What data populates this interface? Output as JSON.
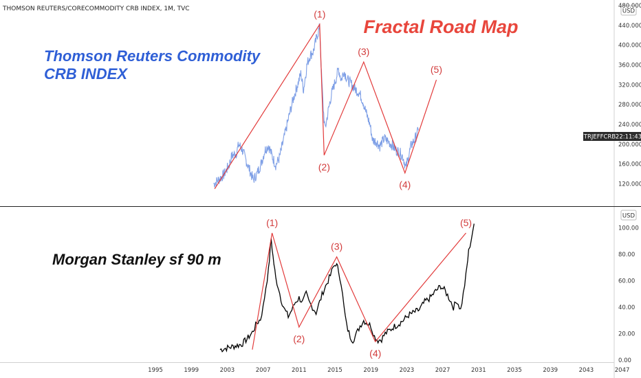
{
  "header": {
    "symbol_title": "THOMSON REUTERS/CORECOMMODITY CRB INDEX, 1M, TVC"
  },
  "colors": {
    "crb_series": "#7e9fe6",
    "ms_series": "#000000",
    "wave_lines": "#e23a3a",
    "wave_labels": "#d23b3b",
    "title_red": "#e8463c",
    "title_blue": "#2f5fd6",
    "price_tag_bg": "#2b2b2b",
    "divider": "#222222"
  },
  "annotations": {
    "fractal_title": "Fractal Road Map",
    "crb_title_line1": "Thomson Reuters Commodity",
    "crb_title_line2": "CRB INDEX",
    "ms_title": "Morgan Stanley sf 90 m"
  },
  "price_tag": {
    "symbol": "TRJEFFCRB",
    "time": "22:11:43"
  },
  "chart_data": [
    {
      "type": "line",
      "pane": "top",
      "currency": "USD",
      "ylim": [
        100,
        480
      ],
      "y_ticks": [
        "120.0000",
        "160.0000",
        "200.0000",
        "240.0000",
        "280.0000",
        "320.0000",
        "360.0000",
        "400.0000",
        "440.0000",
        "480.0000"
      ],
      "series_points": [
        [
          2001.5,
          120
        ],
        [
          2002.0,
          128
        ],
        [
          2002.6,
          138
        ],
        [
          2003.2,
          158
        ],
        [
          2003.5,
          176
        ],
        [
          2004.0,
          182
        ],
        [
          2004.3,
          200
        ],
        [
          2004.7,
          188
        ],
        [
          2005.0,
          172
        ],
        [
          2005.5,
          148
        ],
        [
          2005.9,
          128
        ],
        [
          2006.3,
          140
        ],
        [
          2006.8,
          162
        ],
        [
          2007.2,
          188
        ],
        [
          2007.6,
          198
        ],
        [
          2008.0,
          176
        ],
        [
          2008.4,
          158
        ],
        [
          2008.8,
          172
        ],
        [
          2009.3,
          210
        ],
        [
          2009.8,
          250
        ],
        [
          2010.3,
          288
        ],
        [
          2010.8,
          318
        ],
        [
          2011.2,
          342
        ],
        [
          2011.5,
          310
        ],
        [
          2011.9,
          362
        ],
        [
          2012.2,
          378
        ],
        [
          2012.6,
          388
        ],
        [
          2013.0,
          418
        ],
        [
          2013.3,
          436
        ],
        [
          2013.5,
          340
        ],
        [
          2013.7,
          272
        ],
        [
          2013.9,
          230
        ],
        [
          2014.2,
          262
        ],
        [
          2014.6,
          300
        ],
        [
          2015.0,
          325
        ],
        [
          2015.4,
          352
        ],
        [
          2015.7,
          330
        ],
        [
          2016.0,
          348
        ],
        [
          2016.4,
          330
        ],
        [
          2016.8,
          322
        ],
        [
          2017.2,
          312
        ],
        [
          2017.7,
          304
        ],
        [
          2018.1,
          288
        ],
        [
          2018.5,
          262
        ],
        [
          2018.9,
          240
        ],
        [
          2019.2,
          208
        ],
        [
          2019.6,
          206
        ],
        [
          2020.0,
          196
        ],
        [
          2020.5,
          212
        ],
        [
          2020.9,
          206
        ],
        [
          2021.4,
          198
        ],
        [
          2021.8,
          188
        ],
        [
          2022.2,
          184
        ],
        [
          2022.6,
          174
        ],
        [
          2022.9,
          152
        ],
        [
          2023.2,
          176
        ],
        [
          2023.5,
          198
        ],
        [
          2023.9,
          210
        ],
        [
          2024.3,
          228
        ]
      ],
      "wave_points": [
        [
          2001.6,
          110
        ],
        [
          2013.3,
          442
        ],
        [
          2013.8,
          178
        ],
        [
          2018.2,
          366
        ],
        [
          2022.8,
          142
        ],
        [
          2026.3,
          330
        ]
      ],
      "wave_labels": [
        {
          "label": "(1)",
          "x": 2013.3,
          "y": 442
        },
        {
          "label": "(2)",
          "x": 2013.8,
          "y": 178
        },
        {
          "label": "(3)",
          "x": 2018.2,
          "y": 366
        },
        {
          "label": "(4)",
          "x": 2022.8,
          "y": 142
        },
        {
          "label": "(5)",
          "x": 2026.3,
          "y": 330
        }
      ]
    },
    {
      "type": "line",
      "pane": "bottom",
      "currency": "USD",
      "ylim": [
        -2,
        110
      ],
      "y_ticks": [
        "0.00",
        "20.00",
        "40.00",
        "60.00",
        "80.00",
        "100.00"
      ],
      "x_ticks": [
        1995,
        1999,
        2003,
        2007,
        2011,
        2015,
        2019,
        2023,
        2027,
        2031,
        2035,
        2039,
        2043,
        2047
      ],
      "series_points": [
        [
          2002.2,
          8
        ],
        [
          2002.8,
          9
        ],
        [
          2003.4,
          10
        ],
        [
          2004.0,
          11
        ],
        [
          2004.6,
          12
        ],
        [
          2005.2,
          16
        ],
        [
          2005.8,
          21
        ],
        [
          2006.3,
          28
        ],
        [
          2006.7,
          31
        ],
        [
          2007.0,
          40
        ],
        [
          2007.3,
          55
        ],
        [
          2007.6,
          68
        ],
        [
          2007.9,
          92
        ],
        [
          2008.1,
          78
        ],
        [
          2008.4,
          62
        ],
        [
          2008.7,
          55
        ],
        [
          2009.0,
          46
        ],
        [
          2009.4,
          38
        ],
        [
          2009.8,
          33
        ],
        [
          2010.2,
          38
        ],
        [
          2010.6,
          44
        ],
        [
          2011.0,
          47
        ],
        [
          2011.4,
          44
        ],
        [
          2011.8,
          50
        ],
        [
          2012.1,
          44
        ],
        [
          2012.5,
          40
        ],
        [
          2012.9,
          36
        ],
        [
          2013.3,
          44
        ],
        [
          2013.7,
          52
        ],
        [
          2014.1,
          58
        ],
        [
          2014.5,
          64
        ],
        [
          2014.8,
          70
        ],
        [
          2015.1,
          73
        ],
        [
          2015.4,
          68
        ],
        [
          2015.7,
          58
        ],
        [
          2016.0,
          40
        ],
        [
          2016.3,
          26
        ],
        [
          2016.7,
          18
        ],
        [
          2017.0,
          15
        ],
        [
          2017.4,
          20
        ],
        [
          2017.8,
          26
        ],
        [
          2018.2,
          30
        ],
        [
          2018.6,
          28
        ],
        [
          2019.0,
          26
        ],
        [
          2019.4,
          18
        ],
        [
          2019.8,
          15
        ],
        [
          2020.2,
          16
        ],
        [
          2020.6,
          20
        ],
        [
          2021.0,
          22
        ],
        [
          2021.5,
          25
        ],
        [
          2022.0,
          27
        ],
        [
          2022.6,
          30
        ],
        [
          2023.2,
          34
        ],
        [
          2023.8,
          36
        ],
        [
          2024.4,
          38
        ],
        [
          2025.0,
          44
        ],
        [
          2025.6,
          47
        ],
        [
          2026.2,
          52
        ],
        [
          2026.8,
          56
        ],
        [
          2027.3,
          52
        ],
        [
          2027.8,
          46
        ],
        [
          2028.2,
          40
        ],
        [
          2028.6,
          45
        ],
        [
          2029.0,
          38
        ],
        [
          2029.3,
          50
        ],
        [
          2029.6,
          64
        ],
        [
          2029.9,
          82
        ],
        [
          2030.2,
          92
        ],
        [
          2030.5,
          103
        ]
      ],
      "wave_points": [
        [
          2005.8,
          8
        ],
        [
          2008.0,
          96
        ],
        [
          2011.0,
          25
        ],
        [
          2015.2,
          78
        ],
        [
          2019.5,
          14
        ],
        [
          2029.6,
          96
        ]
      ],
      "wave_labels": [
        {
          "label": "(1)",
          "x": 2008.0,
          "y": 96
        },
        {
          "label": "(2)",
          "x": 2011.0,
          "y": 25
        },
        {
          "label": "(3)",
          "x": 2015.2,
          "y": 78
        },
        {
          "label": "(4)",
          "x": 2019.5,
          "y": 14
        },
        {
          "label": "(5)",
          "x": 2029.6,
          "y": 96
        }
      ]
    }
  ]
}
